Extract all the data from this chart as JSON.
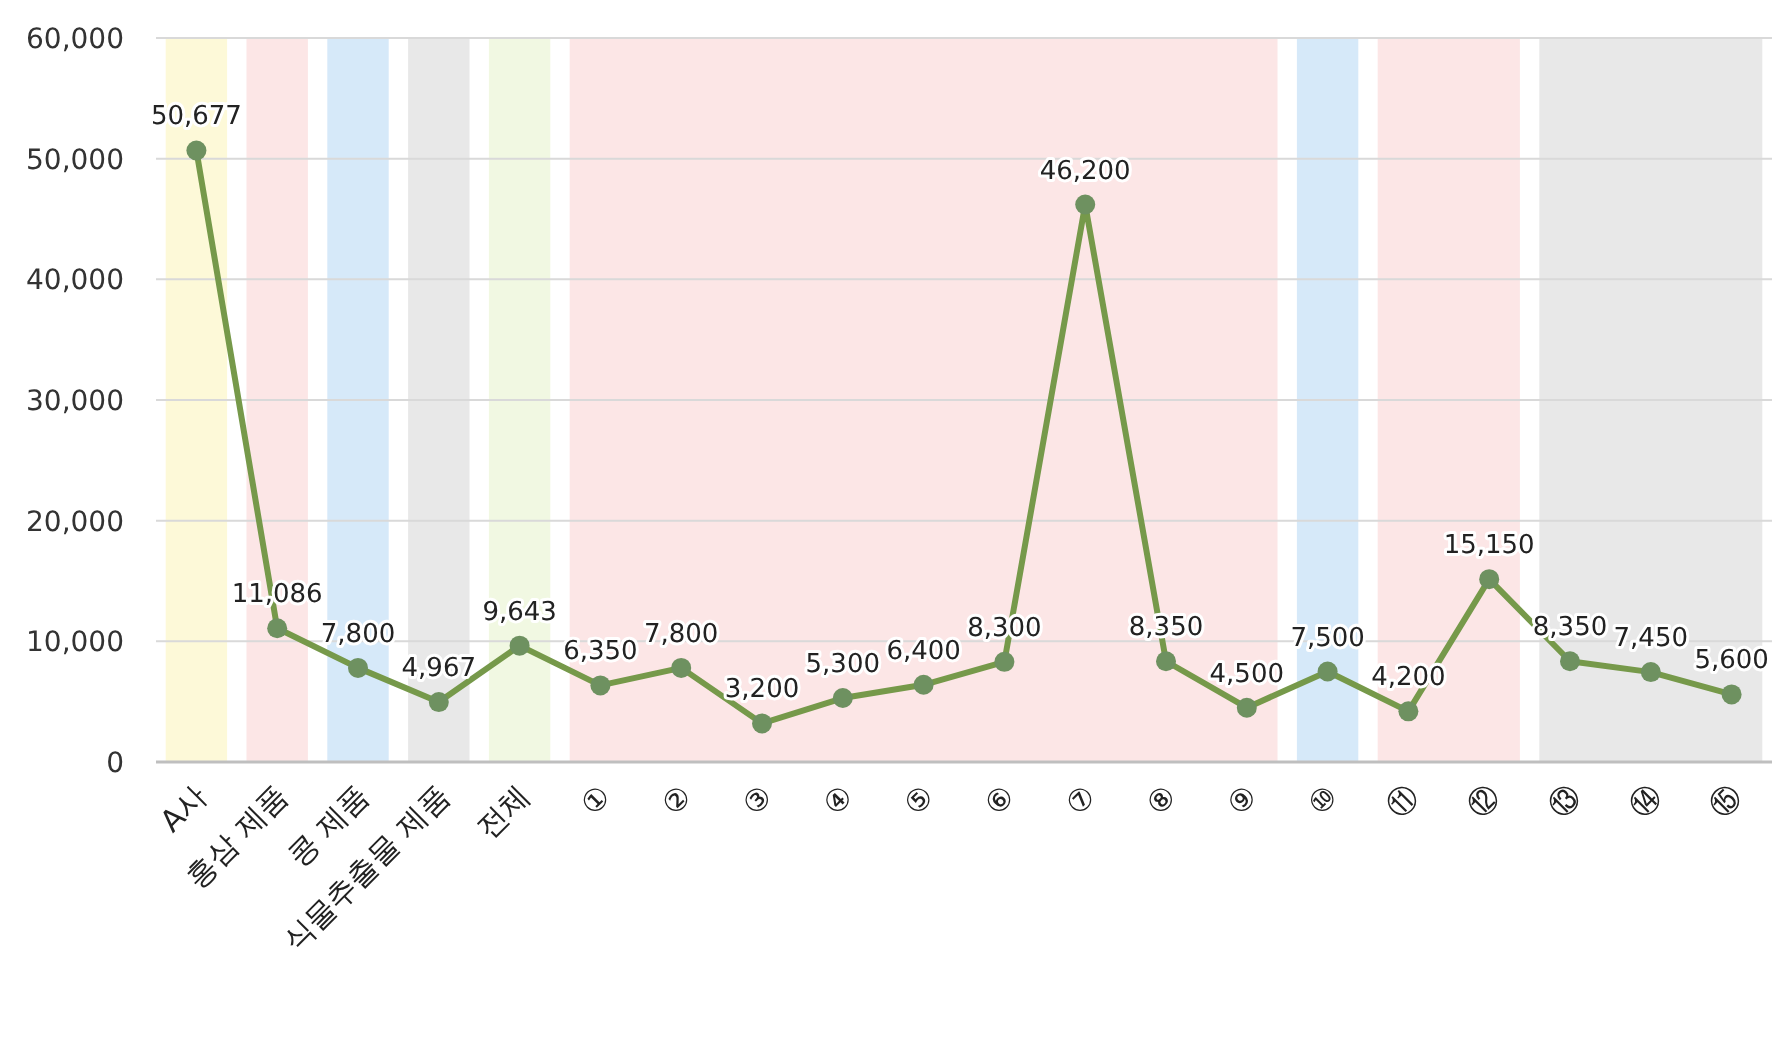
{
  "chart_data": {
    "type": "line",
    "categories": [
      "A사",
      "홍삼 제품",
      "콩 제품",
      "식물추출물 제품",
      "전체",
      "①",
      "②",
      "③",
      "④",
      "⑤",
      "⑥",
      "⑦",
      "⑧",
      "⑨",
      "⑩",
      "⑪",
      "⑫",
      "⑬",
      "⑭",
      "⑮"
    ],
    "series": [
      {
        "color": "#76994a",
        "values": [
          50677,
          11086,
          7800,
          4967,
          9643,
          6350,
          7800,
          3200,
          5300,
          6400,
          8300,
          46200,
          8350,
          4500,
          7500,
          4200,
          15150,
          8350,
          7450,
          5600
        ],
        "value_labels": [
          "50,677",
          "11,086",
          "7,800",
          "4,967",
          "9,643",
          "6,350",
          "7,800",
          "3,200",
          "5,300",
          "6,400",
          "8,300",
          "46,200",
          "8,350",
          "4,500",
          "7,500",
          "4,200",
          "15,150",
          "8,350",
          "7,450",
          "5,600"
        ]
      }
    ],
    "ylim": [
      0,
      60000
    ],
    "yticks": [
      {
        "value": 0,
        "label": "0"
      },
      {
        "value": 10000,
        "label": "10,000"
      },
      {
        "value": 20000,
        "label": "20,000"
      },
      {
        "value": 30000,
        "label": "30,000"
      },
      {
        "value": 40000,
        "label": "40,000"
      },
      {
        "value": 50000,
        "label": "50,000"
      },
      {
        "value": 60000,
        "label": "60,000"
      }
    ],
    "grid": "y",
    "marker": "circle",
    "line_style": "solid",
    "bands": [
      {
        "axis": "x",
        "from": "A사",
        "to": "A사",
        "color": "#fdf9d8"
      },
      {
        "axis": "x",
        "from": "홍삼 제품",
        "to": "홍삼 제품",
        "color": "#fce6e6"
      },
      {
        "axis": "x",
        "from": "콩 제품",
        "to": "콩 제품",
        "color": "#d6e9f9"
      },
      {
        "axis": "x",
        "from": "식물추출물 제품",
        "to": "식물추출물 제품",
        "color": "#e8e8e8"
      },
      {
        "axis": "x",
        "from": "전체",
        "to": "전체",
        "color": "#f1f8e2"
      },
      {
        "axis": "x",
        "from": "①",
        "to": "⑨",
        "color": "#fce6e6"
      },
      {
        "axis": "x",
        "from": "⑩",
        "to": "⑩",
        "color": "#d6e9f9"
      },
      {
        "axis": "x",
        "from": "⑪",
        "to": "⑫",
        "color": "#fce6e6"
      },
      {
        "axis": "x",
        "from": "⑬",
        "to": "⑮",
        "color": "#e8e8e8"
      }
    ]
  }
}
